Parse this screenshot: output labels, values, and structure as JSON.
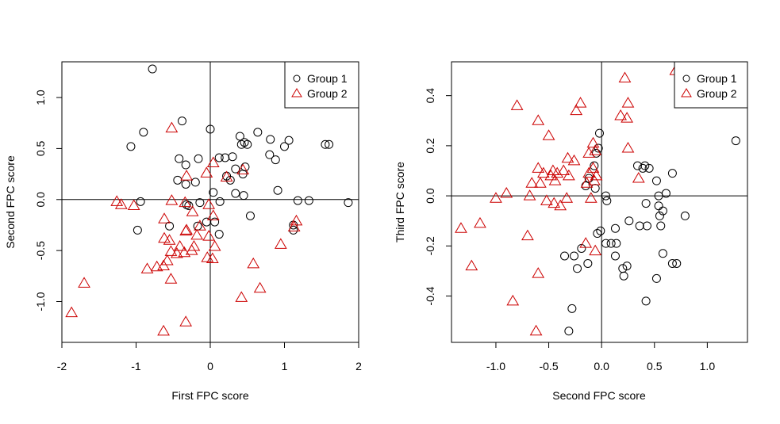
{
  "colors": {
    "group1": "#000000",
    "group2": "#cc0000",
    "axis": "#000000",
    "background": "#ffffff"
  },
  "chart_data": [
    {
      "type": "scatter",
      "xlabel": "First FPC score",
      "ylabel": "Second FPC score",
      "xlim": [
        -2,
        2
      ],
      "ylim": [
        -1.4,
        1.35
      ],
      "xticks": [
        -2,
        -1,
        0,
        1,
        2
      ],
      "xtick_labels": [
        "-2",
        "-1",
        "0",
        "1",
        "2"
      ],
      "yticks": [
        -1.0,
        -0.5,
        0.0,
        0.5,
        1.0
      ],
      "ytick_labels": [
        "-1.0",
        "-0.5",
        "0.0",
        "0.5",
        "1.0"
      ],
      "reference_lines": {
        "x": 0,
        "y": 0
      },
      "grid": false,
      "legend": {
        "position": "top-right",
        "entries": [
          {
            "label": "Group 1",
            "marker": "circle",
            "color": "#000000"
          },
          {
            "label": "Group 2",
            "marker": "triangle",
            "color": "#cc0000"
          }
        ]
      },
      "series": [
        {
          "name": "Group 1",
          "marker": "circle",
          "color": "#000000",
          "points": [
            [
              -0.78,
              1.28
            ],
            [
              -1.07,
              0.52
            ],
            [
              -0.9,
              0.66
            ],
            [
              -0.38,
              0.77
            ],
            [
              0.0,
              0.69
            ],
            [
              0.64,
              0.66
            ],
            [
              -0.42,
              0.4
            ],
            [
              -0.33,
              0.34
            ],
            [
              -0.16,
              0.4
            ],
            [
              0.12,
              0.41
            ],
            [
              0.2,
              0.41
            ],
            [
              0.3,
              0.42
            ],
            [
              0.4,
              0.62
            ],
            [
              0.42,
              0.54
            ],
            [
              0.46,
              0.56
            ],
            [
              0.5,
              0.54
            ],
            [
              0.81,
              0.59
            ],
            [
              0.8,
              0.44
            ],
            [
              0.88,
              0.39
            ],
            [
              1.0,
              0.52
            ],
            [
              1.06,
              0.58
            ],
            [
              1.55,
              0.54
            ],
            [
              1.6,
              0.54
            ],
            [
              0.34,
              0.3
            ],
            [
              0.47,
              0.32
            ],
            [
              0.44,
              0.25
            ],
            [
              0.27,
              0.19
            ],
            [
              0.22,
              0.23
            ],
            [
              -0.44,
              0.19
            ],
            [
              -0.2,
              0.17
            ],
            [
              -0.33,
              0.15
            ],
            [
              0.34,
              0.06
            ],
            [
              0.45,
              0.04
            ],
            [
              0.91,
              0.09
            ],
            [
              0.04,
              0.07
            ],
            [
              -0.94,
              -0.02
            ],
            [
              -0.32,
              -0.05
            ],
            [
              -0.29,
              -0.06
            ],
            [
              -0.14,
              -0.03
            ],
            [
              0.13,
              -0.02
            ],
            [
              0.54,
              -0.16
            ],
            [
              1.18,
              -0.01
            ],
            [
              1.33,
              -0.01
            ],
            [
              1.86,
              -0.03
            ],
            [
              -0.98,
              -0.3
            ],
            [
              -0.55,
              -0.26
            ],
            [
              -0.17,
              -0.26
            ],
            [
              0.06,
              -0.22
            ],
            [
              0.12,
              -0.34
            ],
            [
              1.12,
              -0.3
            ],
            [
              1.12,
              -0.25
            ],
            [
              -0.05,
              -0.22
            ]
          ]
        },
        {
          "name": "Group 2",
          "marker": "triangle",
          "color": "#cc0000",
          "points": [
            [
              -0.52,
              0.7
            ],
            [
              -0.05,
              0.26
            ],
            [
              0.04,
              0.36
            ],
            [
              -0.32,
              0.23
            ],
            [
              0.22,
              0.22
            ],
            [
              0.44,
              0.29
            ],
            [
              -1.26,
              -0.02
            ],
            [
              -1.2,
              -0.05
            ],
            [
              -1.03,
              -0.06
            ],
            [
              -0.52,
              -0.01
            ],
            [
              -0.62,
              -0.19
            ],
            [
              -0.34,
              -0.03
            ],
            [
              -0.24,
              -0.12
            ],
            [
              -0.02,
              -0.05
            ],
            [
              0.04,
              -0.16
            ],
            [
              -0.32,
              -0.3
            ],
            [
              -0.33,
              -0.31
            ],
            [
              -0.62,
              -0.38
            ],
            [
              -0.55,
              -0.4
            ],
            [
              -0.53,
              -0.51
            ],
            [
              -0.45,
              -0.53
            ],
            [
              -0.41,
              -0.46
            ],
            [
              -0.35,
              -0.52
            ],
            [
              -0.25,
              -0.5
            ],
            [
              -0.22,
              -0.46
            ],
            [
              -0.18,
              -0.35
            ],
            [
              0.06,
              -0.46
            ],
            [
              -0.04,
              -0.57
            ],
            [
              0.03,
              -0.58
            ],
            [
              -0.63,
              -0.65
            ],
            [
              -0.58,
              -0.6
            ],
            [
              -0.85,
              -0.68
            ],
            [
              -0.72,
              -0.66
            ],
            [
              -0.53,
              -0.78
            ],
            [
              0.58,
              -0.63
            ],
            [
              0.67,
              -0.87
            ],
            [
              0.95,
              -0.44
            ],
            [
              1.13,
              -0.27
            ],
            [
              1.16,
              -0.21
            ],
            [
              0.42,
              -0.96
            ],
            [
              -1.7,
              -0.82
            ],
            [
              -1.87,
              -1.11
            ],
            [
              -0.63,
              -1.29
            ],
            [
              -0.33,
              -1.2
            ],
            [
              -0.02,
              -0.36
            ],
            [
              -0.14,
              -0.26
            ]
          ]
        }
      ]
    },
    {
      "type": "scatter",
      "xlabel": "Second FPC score",
      "ylabel": "Third FPC score",
      "xlim": [
        -1.42,
        1.38
      ],
      "ylim": [
        -0.585,
        0.535
      ],
      "xticks": [
        -1.0,
        -0.5,
        0.0,
        0.5,
        1.0
      ],
      "xtick_labels": [
        "-1.0",
        "-0.5",
        "0.0",
        "0.5",
        "1.0"
      ],
      "yticks": [
        -0.4,
        -0.2,
        0.0,
        0.2,
        0.4
      ],
      "ytick_labels": [
        "-0.4",
        "-0.2",
        "0.0",
        "0.2",
        "0.4"
      ],
      "reference_lines": {
        "x": 0,
        "y": 0
      },
      "grid": false,
      "legend": {
        "position": "top-right",
        "entries": [
          {
            "label": "Group 1",
            "marker": "circle",
            "color": "#000000"
          },
          {
            "label": "Group 2",
            "marker": "triangle",
            "color": "#cc0000"
          }
        ]
      },
      "series": [
        {
          "name": "Group 1",
          "marker": "circle",
          "color": "#000000",
          "points": [
            [
              -0.02,
              0.25
            ],
            [
              -0.03,
              0.19
            ],
            [
              -0.05,
              0.17
            ],
            [
              -0.07,
              0.12
            ],
            [
              -0.12,
              0.07
            ],
            [
              -0.15,
              0.04
            ],
            [
              -0.06,
              0.03
            ],
            [
              0.04,
              0.0
            ],
            [
              0.05,
              -0.02
            ],
            [
              0.34,
              0.12
            ],
            [
              0.39,
              0.11
            ],
            [
              0.41,
              0.12
            ],
            [
              0.45,
              0.11
            ],
            [
              0.52,
              0.06
            ],
            [
              0.54,
              0.0
            ],
            [
              0.61,
              0.01
            ],
            [
              0.67,
              0.09
            ],
            [
              0.42,
              -0.03
            ],
            [
              0.26,
              -0.1
            ],
            [
              0.36,
              -0.12
            ],
            [
              0.43,
              -0.12
            ],
            [
              0.55,
              -0.08
            ],
            [
              0.54,
              -0.04
            ],
            [
              0.58,
              -0.06
            ],
            [
              0.56,
              -0.12
            ],
            [
              0.79,
              -0.08
            ],
            [
              1.27,
              0.22
            ],
            [
              -0.04,
              -0.15
            ],
            [
              -0.01,
              -0.14
            ],
            [
              0.04,
              -0.19
            ],
            [
              0.09,
              -0.19
            ],
            [
              0.14,
              -0.19
            ],
            [
              0.13,
              -0.13
            ],
            [
              0.13,
              -0.24
            ],
            [
              -0.26,
              -0.24
            ],
            [
              -0.19,
              -0.21
            ],
            [
              -0.13,
              -0.27
            ],
            [
              -0.35,
              -0.24
            ],
            [
              -0.23,
              -0.29
            ],
            [
              0.2,
              -0.29
            ],
            [
              0.24,
              -0.28
            ],
            [
              0.21,
              -0.32
            ],
            [
              0.52,
              -0.33
            ],
            [
              0.58,
              -0.23
            ],
            [
              0.67,
              -0.27
            ],
            [
              0.71,
              -0.27
            ],
            [
              -0.28,
              -0.45
            ],
            [
              0.42,
              -0.42
            ],
            [
              -0.31,
              -0.54
            ]
          ]
        },
        {
          "name": "Group 2",
          "marker": "triangle",
          "color": "#cc0000",
          "points": [
            [
              0.22,
              0.47
            ],
            [
              0.7,
              0.5
            ],
            [
              -0.8,
              0.36
            ],
            [
              -0.2,
              0.37
            ],
            [
              -0.24,
              0.34
            ],
            [
              0.25,
              0.37
            ],
            [
              0.18,
              0.32
            ],
            [
              0.24,
              0.31
            ],
            [
              -0.6,
              0.3
            ],
            [
              -0.5,
              0.24
            ],
            [
              -0.08,
              0.21
            ],
            [
              -0.06,
              0.18
            ],
            [
              -0.12,
              0.17
            ],
            [
              0.25,
              0.19
            ],
            [
              -0.32,
              0.15
            ],
            [
              -0.26,
              0.14
            ],
            [
              -0.6,
              0.11
            ],
            [
              -0.55,
              0.09
            ],
            [
              -0.48,
              0.08
            ],
            [
              -0.46,
              0.1
            ],
            [
              -0.42,
              0.09
            ],
            [
              -0.44,
              0.06
            ],
            [
              -0.36,
              0.1
            ],
            [
              -0.31,
              0.08
            ],
            [
              -0.12,
              0.09
            ],
            [
              -0.08,
              0.11
            ],
            [
              -0.05,
              0.08
            ],
            [
              -0.07,
              0.06
            ],
            [
              -0.66,
              0.05
            ],
            [
              -0.58,
              0.05
            ],
            [
              0.35,
              0.07
            ],
            [
              -1.0,
              -0.01
            ],
            [
              -0.9,
              0.01
            ],
            [
              -0.68,
              0.0
            ],
            [
              -0.52,
              -0.02
            ],
            [
              -0.45,
              -0.03
            ],
            [
              -0.39,
              -0.04
            ],
            [
              -0.33,
              -0.01
            ],
            [
              -0.1,
              -0.01
            ],
            [
              -0.14,
              0.05
            ],
            [
              -1.33,
              -0.13
            ],
            [
              -1.15,
              -0.11
            ],
            [
              -0.7,
              -0.16
            ],
            [
              -1.23,
              -0.28
            ],
            [
              -0.15,
              -0.19
            ],
            [
              -0.06,
              -0.22
            ],
            [
              -0.6,
              -0.31
            ],
            [
              -0.84,
              -0.42
            ],
            [
              -0.62,
              -0.54
            ]
          ]
        }
      ]
    }
  ]
}
